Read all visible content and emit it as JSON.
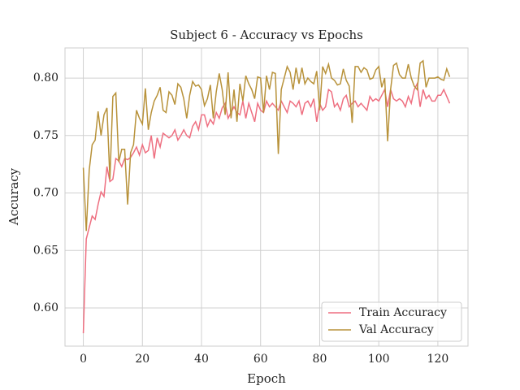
{
  "chart_data": {
    "type": "line",
    "title": "Subject 6 - Accuracy vs Epochs",
    "x_label": "Epoch",
    "y_label": "Accuracy",
    "x": [
      0,
      1,
      2,
      3,
      4,
      5,
      6,
      7,
      8,
      9,
      10,
      11,
      12,
      13,
      14,
      15,
      16,
      17,
      18,
      19,
      20,
      21,
      22,
      23,
      24,
      25,
      26,
      27,
      28,
      29,
      30,
      31,
      32,
      33,
      34,
      35,
      36,
      37,
      38,
      39,
      40,
      41,
      42,
      43,
      44,
      45,
      46,
      47,
      48,
      49,
      50,
      51,
      52,
      53,
      54,
      55,
      56,
      57,
      58,
      59,
      60,
      61,
      62,
      63,
      64,
      65,
      66,
      67,
      68,
      69,
      70,
      71,
      72,
      73,
      74,
      75,
      76,
      77,
      78,
      79,
      80,
      81,
      82,
      83,
      84,
      85,
      86,
      87,
      88,
      89,
      90,
      91,
      92,
      93,
      94,
      95,
      96,
      97,
      98,
      99,
      100,
      101,
      102,
      103,
      104,
      105,
      106,
      107,
      108,
      109,
      110,
      111,
      112,
      113,
      114,
      115,
      116,
      117,
      118,
      119,
      120,
      121,
      122,
      123,
      124
    ],
    "series": [
      {
        "name": "Train Accuracy",
        "color": "#ee6f80",
        "values": [
          0.578,
          0.66,
          0.67,
          0.68,
          0.677,
          0.69,
          0.701,
          0.697,
          0.723,
          0.71,
          0.712,
          0.73,
          0.728,
          0.723,
          0.73,
          0.729,
          0.731,
          0.735,
          0.74,
          0.733,
          0.742,
          0.735,
          0.737,
          0.75,
          0.73,
          0.748,
          0.74,
          0.752,
          0.75,
          0.748,
          0.75,
          0.755,
          0.746,
          0.75,
          0.755,
          0.75,
          0.748,
          0.758,
          0.762,
          0.755,
          0.768,
          0.768,
          0.758,
          0.764,
          0.76,
          0.77,
          0.765,
          0.774,
          0.778,
          0.765,
          0.77,
          0.775,
          0.77,
          0.768,
          0.78,
          0.765,
          0.778,
          0.77,
          0.762,
          0.778,
          0.772,
          0.77,
          0.78,
          0.775,
          0.778,
          0.775,
          0.772,
          0.78,
          0.775,
          0.77,
          0.78,
          0.778,
          0.775,
          0.78,
          0.768,
          0.778,
          0.78,
          0.775,
          0.782,
          0.762,
          0.778,
          0.772,
          0.775,
          0.79,
          0.788,
          0.775,
          0.778,
          0.772,
          0.782,
          0.785,
          0.775,
          0.778,
          0.78,
          0.775,
          0.778,
          0.775,
          0.772,
          0.784,
          0.78,
          0.782,
          0.78,
          0.785,
          0.79,
          0.775,
          0.79,
          0.782,
          0.78,
          0.782,
          0.78,
          0.775,
          0.784,
          0.778,
          0.79,
          0.795,
          0.775,
          0.79,
          0.782,
          0.785,
          0.78,
          0.78,
          0.785,
          0.785,
          0.79,
          0.784,
          0.778
        ]
      },
      {
        "name": "Val Accuracy",
        "color": "#b8923a",
        "values": [
          0.722,
          0.667,
          0.72,
          0.742,
          0.746,
          0.771,
          0.75,
          0.768,
          0.774,
          0.712,
          0.784,
          0.787,
          0.727,
          0.738,
          0.738,
          0.69,
          0.735,
          0.742,
          0.772,
          0.765,
          0.76,
          0.791,
          0.755,
          0.77,
          0.78,
          0.785,
          0.792,
          0.772,
          0.77,
          0.788,
          0.785,
          0.777,
          0.795,
          0.792,
          0.782,
          0.765,
          0.785,
          0.797,
          0.793,
          0.794,
          0.79,
          0.776,
          0.782,
          0.794,
          0.765,
          0.788,
          0.804,
          0.79,
          0.768,
          0.805,
          0.765,
          0.79,
          0.762,
          0.795,
          0.78,
          0.802,
          0.795,
          0.79,
          0.782,
          0.801,
          0.8,
          0.77,
          0.802,
          0.79,
          0.805,
          0.804,
          0.734,
          0.79,
          0.8,
          0.81,
          0.805,
          0.79,
          0.809,
          0.795,
          0.809,
          0.795,
          0.8,
          0.797,
          0.795,
          0.806,
          0.772,
          0.81,
          0.804,
          0.812,
          0.8,
          0.798,
          0.794,
          0.795,
          0.808,
          0.798,
          0.793,
          0.761,
          0.81,
          0.81,
          0.805,
          0.809,
          0.807,
          0.799,
          0.8,
          0.807,
          0.81,
          0.792,
          0.8,
          0.745,
          0.79,
          0.811,
          0.813,
          0.803,
          0.8,
          0.8,
          0.812,
          0.8,
          0.793,
          0.79,
          0.813,
          0.815,
          0.792,
          0.8,
          0.8,
          0.8,
          0.801,
          0.799,
          0.798,
          0.808,
          0.801
        ]
      }
    ],
    "xlim": [
      -6.2,
      130.2
    ],
    "ylim": [
      0.5668,
      0.8262
    ],
    "xticks": [
      0,
      20,
      40,
      60,
      80,
      100,
      120
    ],
    "yticks": [
      {
        "value": 0.6,
        "label": "0.60"
      },
      {
        "value": 0.65,
        "label": "0.65"
      },
      {
        "value": 0.7,
        "label": "0.70"
      },
      {
        "value": 0.75,
        "label": "0.75"
      },
      {
        "value": 0.8,
        "label": "0.80"
      }
    ],
    "grid": true,
    "legend": "lower right"
  }
}
